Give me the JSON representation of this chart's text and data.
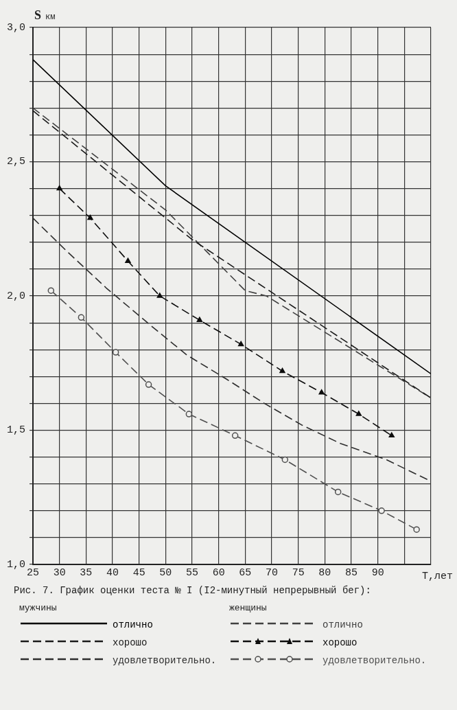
{
  "chart_data": {
    "type": "line",
    "title": "Рис. 7.  График оценки теста № I (I2-минутный непрерывный бег):",
    "xlabel": "T,лет",
    "ylabel": "S км",
    "annotations": [
      "мужчины",
      "женщины"
    ],
    "xlim": [
      25,
      100
    ],
    "xticks": [
      25,
      30,
      35,
      40,
      45,
      50,
      55,
      60,
      65,
      70,
      75,
      80,
      85,
      90,
      {
        "value": 95,
        "label": null
      },
      {
        "value": 100,
        "label": null
      }
    ],
    "ylim": [
      1,
      3
    ],
    "yticks": [
      {
        "value": 1,
        "label": "1,0"
      },
      {
        "value": 1.1,
        "label": null
      },
      {
        "value": 1.2,
        "label": null
      },
      {
        "value": 1.3,
        "label": null
      },
      {
        "value": 1.4,
        "label": null
      },
      {
        "value": 1.5,
        "label": "1,5"
      },
      {
        "value": 1.6,
        "label": null
      },
      {
        "value": 1.7,
        "label": null
      },
      {
        "value": 1.8,
        "label": null
      },
      {
        "value": 1.9,
        "label": null
      },
      {
        "value": 2,
        "label": "2,0"
      },
      {
        "value": 2.1,
        "label": null
      },
      {
        "value": 2.2,
        "label": null
      },
      {
        "value": 2.3,
        "label": null
      },
      {
        "value": 2.4,
        "label": null
      },
      {
        "value": 2.5,
        "label": "2,5"
      },
      {
        "value": 2.6,
        "label": null
      },
      {
        "value": 2.7,
        "label": null
      },
      {
        "value": 2.8,
        "label": null
      },
      {
        "value": 2.9,
        "label": null
      },
      {
        "value": 3,
        "label": "3,0"
      }
    ],
    "grid": true,
    "legend": "bottom",
    "series": [
      {
        "name": "отлично",
        "color": "#000000",
        "line_style": "solid",
        "x": [
          25,
          50,
          100
        ],
        "values": [
          2.88,
          2.41,
          1.71
        ]
      },
      {
        "name": "хорошо",
        "color": "#1a1a1a",
        "line_style": "dashed",
        "x": [
          25,
          55,
          100
        ],
        "values": [
          2.69,
          2.21,
          1.62
        ]
      },
      {
        "name": "удовлетворительно.",
        "color": "#2e2e2e",
        "line_style": "dashed",
        "x": [
          25,
          31.2,
          38.8,
          47.2,
          54,
          61.5,
          68.6,
          75.6,
          83,
          91.6,
          100
        ],
        "values": [
          2.29,
          2.17,
          2.03,
          1.89,
          1.78,
          1.69,
          1.6,
          1.52,
          1.45,
          1.39,
          1.31
        ]
      },
      {
        "name": "отлично",
        "color": "#404040",
        "line_style": "dashed",
        "x": [
          25,
          50,
          65,
          69,
          100
        ],
        "values": [
          2.7,
          2.32,
          2.02,
          2.0,
          1.62
        ]
      },
      {
        "name": "хорошо",
        "color": "#0d0d0d",
        "line_style": "dashed",
        "marker": "triangle",
        "x": [
          30,
          35.8,
          42.9,
          48.9,
          56.4,
          64.2,
          72,
          79.4,
          86.4,
          92.6
        ],
        "values": [
          2.4,
          2.29,
          2.13,
          2.0,
          1.91,
          1.82,
          1.72,
          1.64,
          1.56,
          1.48
        ]
      },
      {
        "name": "удовлетворительно.",
        "color": "#4f4f4f",
        "line_style": "dashed",
        "marker": "circle",
        "x": [
          28.4,
          34.1,
          40.6,
          46.8,
          54.4,
          63.1,
          72.5,
          82.5,
          90.7,
          97.3
        ],
        "values": [
          2.02,
          1.92,
          1.79,
          1.67,
          1.56,
          1.48,
          1.39,
          1.27,
          1.2,
          1.13
        ]
      }
    ]
  }
}
